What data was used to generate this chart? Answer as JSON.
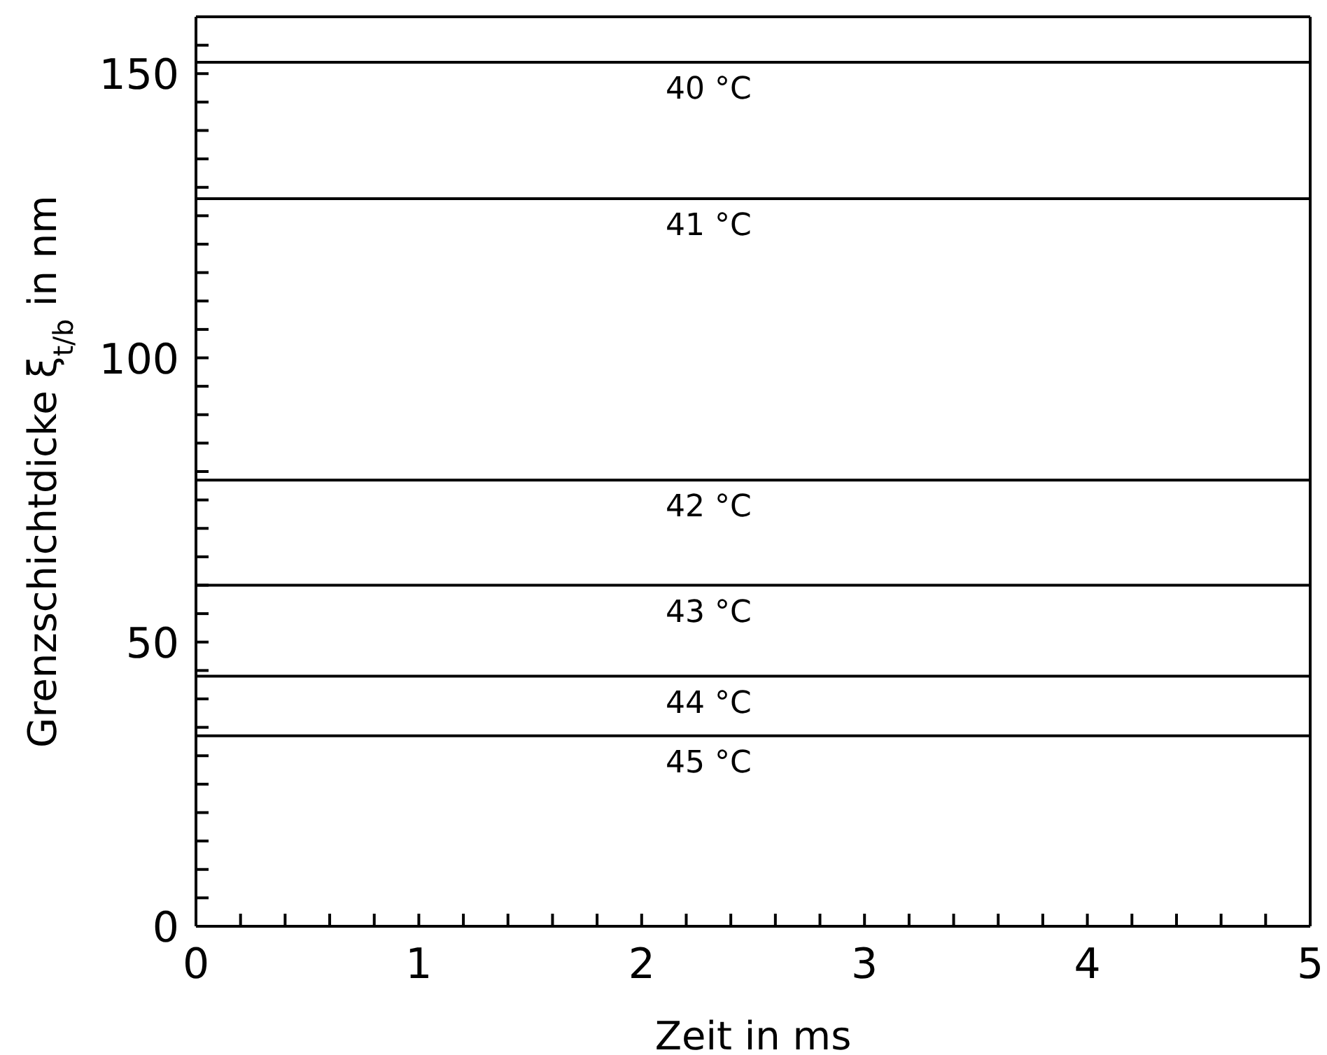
{
  "chart_data": {
    "type": "line",
    "xlabel": "Zeit in ms",
    "ylabel": "Grenzschichtdicke ξ$_{t/b}$ in nm",
    "xlim": [
      0,
      5
    ],
    "ylim": [
      0,
      160
    ],
    "xticks": [
      0,
      {
        "value": 0.2,
        "label": null
      },
      {
        "value": 0.4,
        "label": null
      },
      {
        "value": 0.6,
        "label": null
      },
      {
        "value": 0.8,
        "label": null
      },
      1,
      {
        "value": 1.2,
        "label": null
      },
      {
        "value": 1.4,
        "label": null
      },
      {
        "value": 1.6,
        "label": null
      },
      {
        "value": 1.8,
        "label": null
      },
      2,
      {
        "value": 2.2,
        "label": null
      },
      {
        "value": 2.4,
        "label": null
      },
      {
        "value": 2.6,
        "label": null
      },
      {
        "value": 2.8,
        "label": null
      },
      3,
      {
        "value": 3.2,
        "label": null
      },
      {
        "value": 3.4,
        "label": null
      },
      {
        "value": 3.6,
        "label": null
      },
      {
        "value": 3.8,
        "label": null
      },
      4,
      {
        "value": 4.2,
        "label": null
      },
      {
        "value": 4.4,
        "label": null
      },
      {
        "value": 4.6,
        "label": null
      },
      {
        "value": 4.8,
        "label": null
      },
      5
    ],
    "yticks": [
      0,
      {
        "value": 5,
        "label": null
      },
      {
        "value": 10,
        "label": null
      },
      {
        "value": 15,
        "label": null
      },
      {
        "value": 20,
        "label": null
      },
      {
        "value": 25,
        "label": null
      },
      {
        "value": 30,
        "label": null
      },
      {
        "value": 35,
        "label": null
      },
      {
        "value": 40,
        "label": null
      },
      {
        "value": 45,
        "label": null
      },
      50,
      {
        "value": 55,
        "label": null
      },
      {
        "value": 60,
        "label": null
      },
      {
        "value": 65,
        "label": null
      },
      {
        "value": 70,
        "label": null
      },
      {
        "value": 75,
        "label": null
      },
      {
        "value": 80,
        "label": null
      },
      {
        "value": 85,
        "label": null
      },
      {
        "value": 90,
        "label": null
      },
      {
        "value": 95,
        "label": null
      },
      100,
      {
        "value": 105,
        "label": null
      },
      {
        "value": 110,
        "label": null
      },
      {
        "value": 115,
        "label": null
      },
      {
        "value": 120,
        "label": null
      },
      {
        "value": 125,
        "label": null
      },
      {
        "value": 130,
        "label": null
      },
      {
        "value": 135,
        "label": null
      },
      {
        "value": 140,
        "label": null
      },
      {
        "value": 145,
        "label": null
      },
      150,
      {
        "value": 155,
        "label": null
      }
    ],
    "marker": "none",
    "line_style": "solid",
    "series": [
      {
        "name": "40 °C",
        "color": "#000000",
        "x": [
          0,
          2.3,
          5
        ],
        "values": [
          152,
          152,
          152
        ]
      },
      {
        "name": "41 °C",
        "color": "#000000",
        "x": [
          0,
          2.3,
          5
        ],
        "values": [
          128,
          128,
          128
        ]
      },
      {
        "name": "42 °C",
        "color": "#000000",
        "x": [
          0,
          2.3,
          5
        ],
        "values": [
          78.5,
          78.5,
          78.5
        ]
      },
      {
        "name": "43 °C",
        "color": "#000000",
        "x": [
          0,
          2.3,
          5
        ],
        "values": [
          60,
          60,
          60
        ]
      },
      {
        "name": "44 °C",
        "color": "#000000",
        "x": [
          0,
          2.3,
          5
        ],
        "values": [
          44,
          44,
          44
        ]
      },
      {
        "name": "45 °C",
        "color": "#000000",
        "x": [
          0,
          2.3,
          5
        ],
        "values": [
          33.5,
          33.5,
          33.5
        ]
      }
    ]
  }
}
